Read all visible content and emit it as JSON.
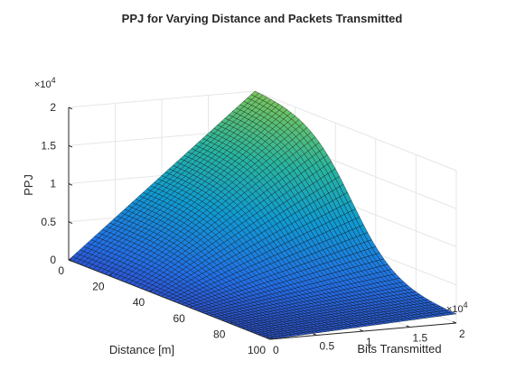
{
  "chart_data": {
    "type": "surface",
    "title": "PPJ for Varying Distance and Packets Transmitted",
    "xlabel": "Distance [m]",
    "ylabel": "Bits Transmitted",
    "zlabel": "PPJ",
    "x_axis": {
      "range": [
        0,
        100
      ],
      "ticks": [
        0,
        20,
        40,
        60,
        80,
        100
      ],
      "tick_labels": [
        "0",
        "20",
        "40",
        "60",
        "80",
        "100"
      ]
    },
    "y_axis": {
      "range": [
        0,
        20000
      ],
      "ticks": [
        0,
        5000,
        10000,
        15000,
        20000
      ],
      "tick_labels": [
        "0",
        "0.5",
        "1",
        "1.5",
        "2"
      ],
      "exponent_label": "×10",
      "exponent_power": "4"
    },
    "z_axis": {
      "range": [
        0,
        20000
      ],
      "ticks": [
        0,
        5000,
        10000,
        15000,
        20000
      ],
      "tick_labels": [
        "0",
        "0.5",
        "1",
        "1.5",
        "2"
      ],
      "exponent_label": "×10",
      "exponent_power": "4"
    },
    "grid": true,
    "colormap": "parula",
    "surface_samples": {
      "distance": [
        0,
        20,
        40,
        60,
        80,
        100
      ],
      "bits": [
        0,
        5000,
        10000,
        15000,
        20000
      ],
      "ppj": [
        [
          0,
          5000,
          10000,
          15000,
          20000
        ],
        [
          0,
          4300,
          8600,
          12900,
          17200
        ],
        [
          0,
          2900,
          5800,
          8700,
          11600
        ],
        [
          0,
          1500,
          3000,
          4500,
          6000
        ],
        [
          0,
          650,
          1300,
          1950,
          2600
        ],
        [
          0,
          300,
          600,
          900,
          1200
        ]
      ]
    }
  }
}
